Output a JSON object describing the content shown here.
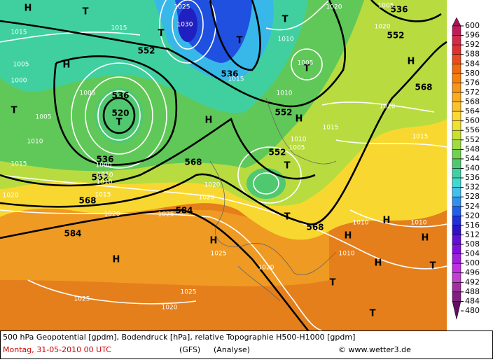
{
  "map": {
    "labels": [
      {
        "text": "552",
        "kind": "isohypse"
      },
      {
        "text": "536",
        "kind": "isohypse"
      },
      {
        "text": "536",
        "kind": "isohypse"
      },
      {
        "text": "520",
        "kind": "isohypse"
      },
      {
        "text": "536",
        "kind": "isohypse"
      },
      {
        "text": "552",
        "kind": "isohypse"
      },
      {
        "text": "568",
        "kind": "isohypse"
      },
      {
        "text": "584",
        "kind": "isohypse"
      },
      {
        "text": "584",
        "kind": "isohypse"
      },
      {
        "text": "568",
        "kind": "isohypse"
      },
      {
        "text": "552",
        "kind": "isohypse"
      },
      {
        "text": "552",
        "kind": "isohypse"
      },
      {
        "text": "568",
        "kind": "isohypse"
      },
      {
        "text": "552",
        "kind": "isohypse"
      },
      {
        "text": "536",
        "kind": "isohypse"
      },
      {
        "text": "568",
        "kind": "isohypse"
      },
      {
        "text": "T",
        "kind": "center"
      },
      {
        "text": "T",
        "kind": "center"
      },
      {
        "text": "T",
        "kind": "center"
      },
      {
        "text": "T",
        "kind": "center"
      },
      {
        "text": "H",
        "kind": "center"
      },
      {
        "text": "T",
        "kind": "center"
      },
      {
        "text": "H",
        "kind": "center"
      },
      {
        "text": "H",
        "kind": "center"
      },
      {
        "text": "T",
        "kind": "center"
      },
      {
        "text": "T",
        "kind": "center"
      },
      {
        "text": "H",
        "kind": "center"
      },
      {
        "text": "H",
        "kind": "center"
      },
      {
        "text": "T",
        "kind": "center"
      },
      {
        "text": "H",
        "kind": "center"
      },
      {
        "text": "H",
        "kind": "center"
      },
      {
        "text": "H",
        "kind": "center"
      },
      {
        "text": "H",
        "kind": "center"
      },
      {
        "text": "T",
        "kind": "center"
      },
      {
        "text": "T",
        "kind": "center"
      },
      {
        "text": "T",
        "kind": "center"
      },
      {
        "text": "H",
        "kind": "center"
      },
      {
        "text": "H",
        "kind": "center"
      },
      {
        "text": "T",
        "kind": "center"
      },
      {
        "text": "1015",
        "kind": "isobar"
      },
      {
        "text": "1015",
        "kind": "isobar"
      },
      {
        "text": "1030",
        "kind": "isobar"
      },
      {
        "text": "1025",
        "kind": "isobar"
      },
      {
        "text": "1010",
        "kind": "isobar"
      },
      {
        "text": "1005",
        "kind": "isobar"
      },
      {
        "text": "1015",
        "kind": "isobar"
      },
      {
        "text": "1010",
        "kind": "isobar"
      },
      {
        "text": "1000",
        "kind": "isobar"
      },
      {
        "text": "1005",
        "kind": "isobar"
      },
      {
        "text": "1005",
        "kind": "isobar"
      },
      {
        "text": "1005",
        "kind": "isobar"
      },
      {
        "text": "1010",
        "kind": "isobar"
      },
      {
        "text": "1015",
        "kind": "isobar"
      },
      {
        "text": "1020",
        "kind": "isobar"
      },
      {
        "text": "1020",
        "kind": "isobar"
      },
      {
        "text": "1025",
        "kind": "isobar"
      },
      {
        "text": "1025",
        "kind": "isobar"
      },
      {
        "text": "1020",
        "kind": "isobar"
      },
      {
        "text": "1025",
        "kind": "isobar"
      },
      {
        "text": "1020",
        "kind": "isobar"
      },
      {
        "text": "1020",
        "kind": "isobar"
      },
      {
        "text": "1020",
        "kind": "isobar"
      },
      {
        "text": "1010",
        "kind": "isobar"
      },
      {
        "text": "1005",
        "kind": "isobar"
      },
      {
        "text": "1015",
        "kind": "isobar"
      },
      {
        "text": "1020",
        "kind": "isobar"
      },
      {
        "text": "1015",
        "kind": "isobar"
      },
      {
        "text": "1010",
        "kind": "isobar"
      },
      {
        "text": "1010",
        "kind": "isobar"
      },
      {
        "text": "1010",
        "kind": "isobar"
      },
      {
        "text": "1020",
        "kind": "isobar"
      },
      {
        "text": "1005",
        "kind": "isobar"
      },
      {
        "text": "1020",
        "kind": "isobar"
      },
      {
        "text": "1010",
        "kind": "isobar"
      },
      {
        "text": "1015",
        "kind": "isobar"
      },
      {
        "text": "1000",
        "kind": "isobar"
      },
      {
        "text": "1025",
        "kind": "isobar"
      },
      {
        "text": "1010",
        "kind": "isobar"
      }
    ],
    "legend": [
      {
        "value": 600,
        "color": "#a8125a"
      },
      {
        "value": 596,
        "color": "#c01c5a"
      },
      {
        "value": 592,
        "color": "#d42a4a"
      },
      {
        "value": 588,
        "color": "#e03030"
      },
      {
        "value": 584,
        "color": "#e84c20"
      },
      {
        "value": 580,
        "color": "#f06a10"
      },
      {
        "value": 576,
        "color": "#f58010"
      },
      {
        "value": 572,
        "color": "#f8951a"
      },
      {
        "value": 568,
        "color": "#fbab20"
      },
      {
        "value": 564,
        "color": "#fcc22a"
      },
      {
        "value": 560,
        "color": "#fdd830"
      },
      {
        "value": 556,
        "color": "#f0e030"
      },
      {
        "value": 552,
        "color": "#c8e030"
      },
      {
        "value": 548,
        "color": "#a0dc40"
      },
      {
        "value": 544,
        "color": "#70d050"
      },
      {
        "value": 540,
        "color": "#50c870"
      },
      {
        "value": 536,
        "color": "#40d0a0"
      },
      {
        "value": 532,
        "color": "#40d8d0"
      },
      {
        "value": 528,
        "color": "#40c0f0"
      },
      {
        "value": 524,
        "color": "#3090f0"
      },
      {
        "value": 520,
        "color": "#2060e8"
      },
      {
        "value": 516,
        "color": "#2030d8"
      },
      {
        "value": 512,
        "color": "#3010c8"
      },
      {
        "value": 508,
        "color": "#6010d8"
      },
      {
        "value": 504,
        "color": "#8010e0"
      },
      {
        "value": 500,
        "color": "#a020e0"
      },
      {
        "value": 496,
        "color": "#c030e0"
      },
      {
        "value": 492,
        "color": "#c040d0"
      },
      {
        "value": 488,
        "color": "#a030a0"
      },
      {
        "value": 484,
        "color": "#802080"
      },
      {
        "value": 480,
        "color": "#601060"
      }
    ]
  },
  "footer": {
    "description": "500 hPa Geopotential [gpdm], Bodendruck [hPa], relative Topographie H500-H1000 [gpdm]",
    "date": "Montag, 31-05-2010  00 UTC",
    "model": "(GFS)",
    "run": "(Analyse)",
    "credit": "© www.wetter3.de"
  }
}
